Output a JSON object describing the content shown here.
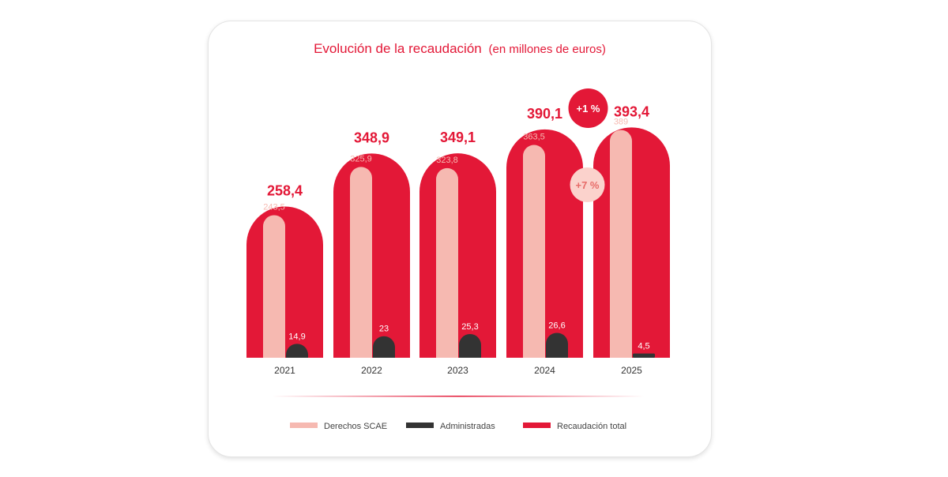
{
  "chart_data": {
    "type": "bar",
    "title": "Evolución de la recaudación",
    "subtitle": "(en millones de euros)",
    "categories": [
      "2021",
      "2022",
      "2023",
      "2024",
      "2025"
    ],
    "series": [
      {
        "name": "Derechos SCAE",
        "values": [
          243.5,
          325.9,
          323.8,
          363.5,
          389
        ],
        "labels": [
          "243,5",
          "325,9",
          "323,8",
          "363,5",
          "389"
        ],
        "color": "#f6b9b1"
      },
      {
        "name": "Administradas",
        "values": [
          14.9,
          23,
          25.3,
          26.6,
          4.5
        ],
        "labels": [
          "14,9",
          "23",
          "25,3",
          "26,6",
          "4,5"
        ],
        "color": "#333333"
      },
      {
        "name": "Recaudación total",
        "values": [
          258.4,
          348.9,
          349.1,
          390.1,
          393.4
        ],
        "labels": [
          "258,4",
          "348,9",
          "349,1",
          "390,1",
          "393,4"
        ],
        "color": "#e31837"
      }
    ],
    "annotations": [
      {
        "text": "+1 %",
        "style": "dark-red-circle"
      },
      {
        "text": "+7 %",
        "style": "light-pink-circle"
      }
    ],
    "legend_position": "bottom",
    "grid": false
  },
  "colors": {
    "accent": "#e31837",
    "light": "#f6b9b1",
    "dark": "#333333"
  }
}
